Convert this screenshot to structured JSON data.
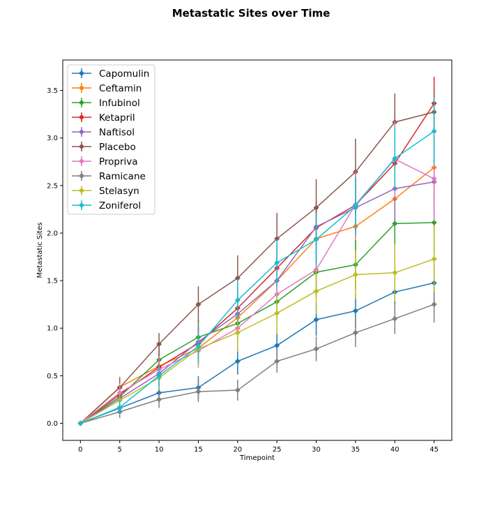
{
  "chart_data": {
    "type": "line",
    "title": "Metastatic Sites over Time",
    "xlabel": "Timepoint",
    "ylabel": "Metastatic Sites",
    "xlim": [
      -2.25,
      47.25
    ],
    "ylim": [
      -0.18,
      3.82
    ],
    "xticks": [
      0,
      5,
      10,
      15,
      20,
      25,
      30,
      35,
      40,
      45
    ],
    "yticks": [
      0.0,
      0.5,
      1.0,
      1.5,
      2.0,
      2.5,
      3.0,
      3.5
    ],
    "ytick_labels": [
      "0.0",
      "0.5",
      "1.0",
      "1.5",
      "2.0",
      "2.5",
      "3.0",
      "3.5"
    ],
    "grid": false,
    "legend_position": "upper-left",
    "marker": "diamond",
    "x": [
      0,
      5,
      10,
      15,
      20,
      25,
      30,
      35,
      40,
      45
    ],
    "series": [
      {
        "name": "Capomulin",
        "color": "#1f77b4",
        "values": [
          0.0,
          0.16,
          0.32,
          0.375,
          0.652,
          0.818,
          1.09,
          1.182,
          1.38,
          1.476
        ],
        "errors": [
          0.0,
          0.075,
          0.1,
          0.12,
          0.14,
          0.13,
          0.17,
          0.17,
          0.18,
          0.2
        ]
      },
      {
        "name": "Ceftamin",
        "color": "#ff7f0e",
        "values": [
          0.0,
          0.38,
          0.6,
          0.79,
          1.11,
          1.5,
          1.94,
          2.07,
          2.36,
          2.69
        ],
        "errors": [
          0.0,
          0.11,
          0.14,
          0.18,
          0.22,
          0.25,
          0.28,
          0.3,
          0.32,
          0.34
        ]
      },
      {
        "name": "Infubinol",
        "color": "#2ca02c",
        "values": [
          0.0,
          0.28,
          0.667,
          0.905,
          1.05,
          1.278,
          1.588,
          1.667,
          2.1,
          2.111
        ],
        "errors": [
          0.0,
          0.09,
          0.14,
          0.18,
          0.19,
          0.22,
          0.24,
          0.26,
          0.3,
          0.32
        ]
      },
      {
        "name": "Ketapril",
        "color": "#d62728",
        "values": [
          0.0,
          0.304,
          0.59,
          0.842,
          1.21,
          1.632,
          2.056,
          2.294,
          2.733,
          3.364
        ],
        "errors": [
          0.0,
          0.1,
          0.13,
          0.17,
          0.21,
          0.24,
          0.27,
          0.29,
          0.27,
          0.28
        ]
      },
      {
        "name": "Naftisol",
        "color": "#9467bd",
        "values": [
          0.0,
          0.26,
          0.523,
          0.857,
          1.15,
          1.5,
          2.067,
          2.267,
          2.467,
          2.538
        ],
        "errors": [
          0.0,
          0.09,
          0.13,
          0.17,
          0.2,
          0.24,
          0.27,
          0.3,
          0.33,
          0.35
        ]
      },
      {
        "name": "Placebo",
        "color": "#8c564b",
        "values": [
          0.0,
          0.375,
          0.833,
          1.25,
          1.526,
          1.941,
          2.267,
          2.643,
          3.167,
          3.273
        ],
        "errors": [
          0.0,
          0.1,
          0.115,
          0.19,
          0.24,
          0.27,
          0.3,
          0.35,
          0.3,
          0.22
        ]
      },
      {
        "name": "Propriva",
        "color": "#e377c2",
        "values": [
          0.0,
          0.32,
          0.565,
          0.764,
          1.0,
          1.357,
          1.615,
          2.3,
          2.778,
          2.571
        ],
        "errors": [
          0.0,
          0.1,
          0.14,
          0.18,
          0.22,
          0.26,
          0.3,
          0.35,
          0.4,
          0.45
        ]
      },
      {
        "name": "Ramicane",
        "color": "#7f7f7f",
        "values": [
          0.0,
          0.12,
          0.25,
          0.333,
          0.348,
          0.652,
          0.782,
          0.952,
          1.1,
          1.25
        ],
        "errors": [
          0.0,
          0.065,
          0.09,
          0.11,
          0.11,
          0.12,
          0.13,
          0.15,
          0.16,
          0.19
        ]
      },
      {
        "name": "Stelasyn",
        "color": "#bcbd22",
        "values": [
          0.0,
          0.24,
          0.478,
          0.782,
          0.953,
          1.158,
          1.389,
          1.563,
          1.583,
          1.727
        ],
        "errors": [
          0.0,
          0.09,
          0.12,
          0.18,
          0.2,
          0.22,
          0.24,
          0.26,
          0.3,
          0.35
        ]
      },
      {
        "name": "Zoniferol",
        "color": "#17becf",
        "values": [
          0.0,
          0.167,
          0.5,
          0.809,
          1.294,
          1.688,
          1.933,
          2.286,
          2.786,
          3.071
        ],
        "errors": [
          0.0,
          0.08,
          0.12,
          0.17,
          0.22,
          0.25,
          0.28,
          0.3,
          0.33,
          0.35
        ]
      }
    ]
  }
}
